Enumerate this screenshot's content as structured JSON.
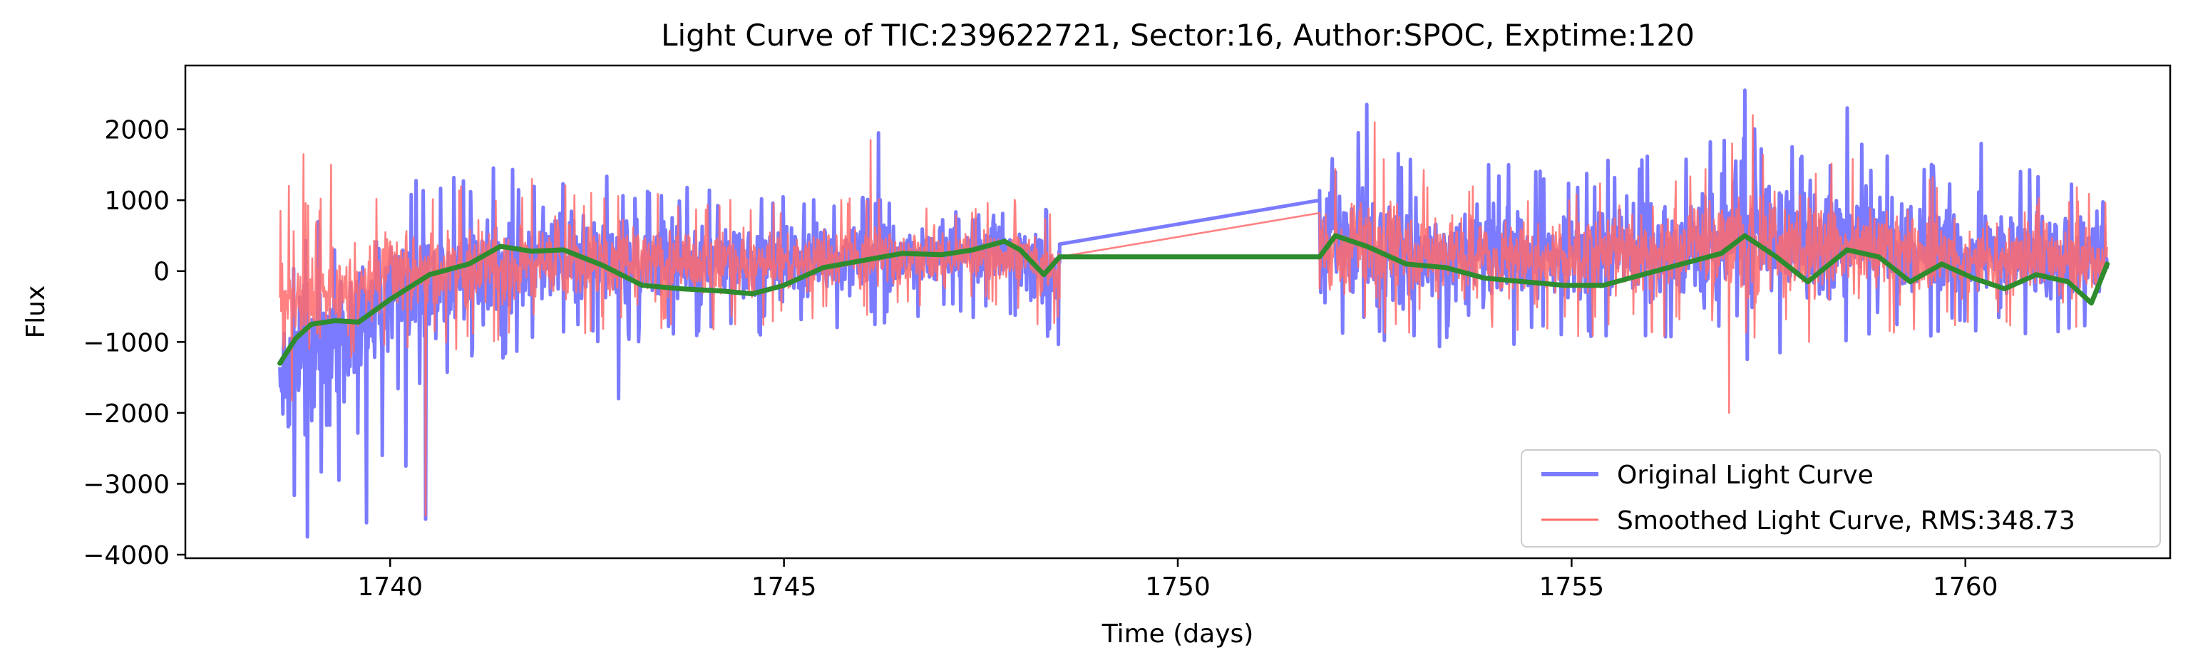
{
  "chart_data": {
    "type": "line",
    "title": "Light Curve of TIC:239622721, Sector:16, Author:SPOC, Exptime:120",
    "xlabel": "Time (days)",
    "ylabel": "Flux",
    "xlim": [
      1737.4,
      1762.6
    ],
    "ylim": [
      -4050,
      2900
    ],
    "xticks": [
      1740,
      1745,
      1750,
      1755,
      1760
    ],
    "yticks": [
      -4000,
      -3000,
      -2000,
      -1000,
      0,
      1000,
      2000
    ],
    "ytick_labels": [
      "−4000",
      "−3000",
      "−2000",
      "−1000",
      "0",
      "1000",
      "2000"
    ],
    "grid": false,
    "legend_position": "lower right",
    "gap": [
      1748.5,
      1751.8
    ],
    "series": [
      {
        "name": "Original Light Curve",
        "color": "#7b7bff",
        "style": "noisy",
        "x_range": [
          1738.6,
          1761.8
        ],
        "gap_endpoints": [
          [
            1748.5,
            380
          ],
          [
            1751.8,
            1000
          ]
        ],
        "envelope_x": [
          1738.6,
          1739.0,
          1739.5,
          1740.0,
          1740.5,
          1741.0,
          1742.0,
          1743.0,
          1744.0,
          1745.0,
          1746.0,
          1747.0,
          1747.8,
          1748.5,
          1751.8,
          1752.5,
          1753.5,
          1754.5,
          1755.5,
          1756.5,
          1757.2,
          1758.0,
          1759.0,
          1760.0,
          1761.0,
          1761.8
        ],
        "envelope_lo": [
          -2800,
          -2500,
          -2000,
          -1300,
          -1200,
          -1000,
          -700,
          -700,
          -650,
          -600,
          -550,
          -400,
          -400,
          -800,
          -700,
          -800,
          -750,
          -700,
          -650,
          -650,
          -800,
          -750,
          -650,
          -600,
          -650,
          -550
        ],
        "envelope_hi": [
          -200,
          300,
          500,
          800,
          900,
          1100,
          1100,
          1000,
          900,
          800,
          950,
          850,
          1200,
          600,
          1600,
          1500,
          1200,
          1100,
          1200,
          1300,
          1800,
          1500,
          1350,
          1100,
          1100,
          900
        ],
        "spikes": [
          [
            1738.95,
            -3750
          ],
          [
            1739.35,
            -2950
          ],
          [
            1739.7,
            -3550
          ],
          [
            1740.45,
            -3500
          ],
          [
            1739.9,
            -2600
          ],
          [
            1740.2,
            -2750
          ],
          [
            1742.9,
            -1800
          ],
          [
            1746.2,
            1950
          ],
          [
            1752.4,
            2350
          ],
          [
            1757.2,
            2550
          ],
          [
            1758.5,
            2300
          ],
          [
            1752.0,
            1400
          ],
          [
            1760.2,
            1800
          ],
          [
            1754.2,
            1500
          ]
        ]
      },
      {
        "name": "Smoothed Light Curve, RMS:348.73",
        "color": "#ff6b6b",
        "style": "noisy",
        "x_range": [
          1738.6,
          1761.8
        ],
        "gap_endpoints": [
          [
            1748.5,
            200
          ],
          [
            1751.8,
            820
          ]
        ],
        "envelope_x": [
          1738.6,
          1739.0,
          1739.5,
          1740.0,
          1740.5,
          1741.0,
          1742.0,
          1743.0,
          1744.0,
          1745.0,
          1746.0,
          1747.0,
          1747.8,
          1748.5,
          1751.8,
          1752.5,
          1753.5,
          1754.5,
          1755.5,
          1756.5,
          1757.2,
          1758.0,
          1759.0,
          1760.0,
          1761.0,
          1761.8
        ],
        "envelope_lo": [
          -1500,
          -1300,
          -1100,
          -900,
          -850,
          -750,
          -650,
          -600,
          -600,
          -500,
          -450,
          -350,
          -350,
          -650,
          -650,
          -700,
          -650,
          -600,
          -600,
          -600,
          -700,
          -650,
          -550,
          -550,
          -600,
          -500
        ],
        "envelope_hi": [
          800,
          700,
          650,
          750,
          800,
          900,
          950,
          850,
          800,
          700,
          850,
          700,
          900,
          500,
          1400,
          1300,
          1050,
          950,
          1050,
          1150,
          1500,
          1300,
          1200,
          950,
          1000,
          800
        ],
        "spikes": [
          [
            1738.9,
            1650
          ],
          [
            1739.25,
            1500
          ],
          [
            1741.8,
            1300
          ],
          [
            1746.1,
            1850
          ],
          [
            1757.0,
            -2000
          ],
          [
            1757.3,
            2200
          ],
          [
            1752.5,
            2100
          ],
          [
            1740.45,
            -3450
          ]
        ]
      },
      {
        "name": "",
        "color": "#2e8b2e",
        "style": "smooth",
        "x": [
          1738.6,
          1738.8,
          1739.0,
          1739.3,
          1739.6,
          1740.0,
          1740.5,
          1741.0,
          1741.4,
          1741.8,
          1742.2,
          1742.7,
          1743.2,
          1743.7,
          1744.2,
          1744.6,
          1745.0,
          1745.5,
          1746.0,
          1746.5,
          1747.0,
          1747.4,
          1747.8,
          1748.0,
          1748.3,
          1748.5,
          1751.8,
          1752.0,
          1752.4,
          1752.9,
          1753.4,
          1753.9,
          1754.4,
          1754.9,
          1755.4,
          1755.9,
          1756.4,
          1756.9,
          1757.2,
          1757.6,
          1758.0,
          1758.5,
          1758.9,
          1759.3,
          1759.7,
          1760.1,
          1760.5,
          1760.9,
          1761.3,
          1761.6,
          1761.8
        ],
        "y": [
          -1300,
          -950,
          -750,
          -700,
          -720,
          -400,
          -50,
          100,
          350,
          280,
          300,
          80,
          -200,
          -250,
          -280,
          -320,
          -200,
          50,
          150,
          250,
          230,
          300,
          420,
          300,
          -50,
          200,
          200,
          500,
          350,
          100,
          50,
          -100,
          -150,
          -200,
          -200,
          -50,
          100,
          250,
          500,
          200,
          -150,
          300,
          200,
          -150,
          100,
          -100,
          -250,
          -50,
          -150,
          -450,
          100
        ]
      }
    ]
  }
}
